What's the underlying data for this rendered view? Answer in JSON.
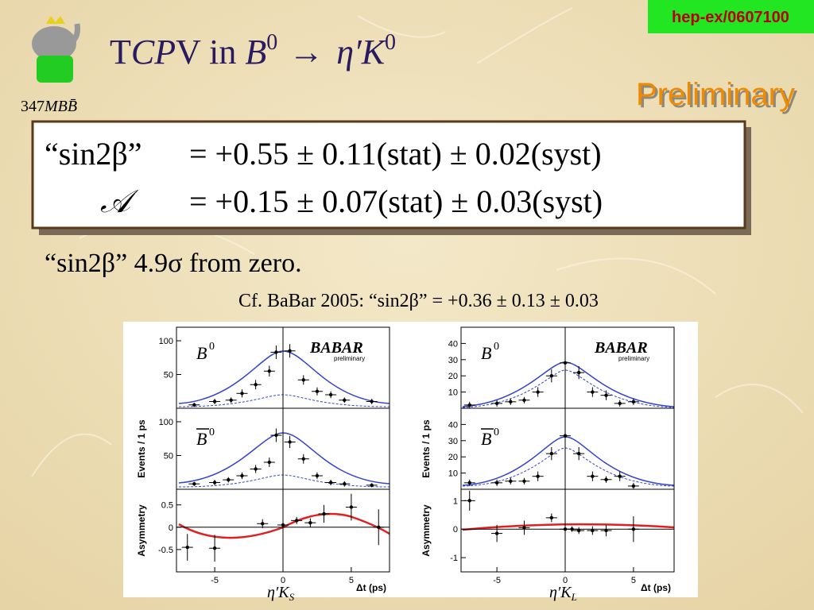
{
  "ref": "hep-ex/0607100",
  "title": {
    "t": "T",
    "cp": "CP",
    "v": "V in ",
    "b": "B",
    "sup": "0",
    "arrow": "→",
    "etak": "η′K",
    "sup2": "0"
  },
  "dataset": {
    "num": "347",
    "unit": "MBB̄"
  },
  "stamp": "Preliminary",
  "result": {
    "line1": {
      "name": "“sin2β”",
      "value": "= +0.55 ± 0.11(stat) ± 0.02(syst)"
    },
    "line2": {
      "name": "𝒜",
      "value": "= +0.15 ± 0.07(stat) ± 0.03(syst)"
    }
  },
  "significance": "“sin2β” 4.9σ from zero.",
  "comparison": "Cf. BaBar 2005: “sin2β” = +0.36 ± 0.13 ± 0.03",
  "plots": [
    {
      "mode": "η′K",
      "sub": "S"
    },
    {
      "mode": "η′K",
      "sub": "L"
    }
  ],
  "plot_text": {
    "b0": "B",
    "b0bar": "B",
    "sup": "0",
    "babar": "BABAR",
    "prelim": "preliminary",
    "ylabel": "Events / 1 ps",
    "asym": "Asymmetry",
    "xlabel": "Δt (ps)"
  },
  "chart_data": [
    {
      "type": "scatter",
      "x": [
        -6.5,
        -5,
        -3.8,
        -3,
        -2,
        -1,
        -0.5,
        0.5,
        1.5,
        2.5,
        3.5,
        4.5,
        6.5
      ],
      "values": [
        5,
        10,
        12,
        22,
        35,
        55,
        83,
        85,
        42,
        25,
        20,
        12,
        10
      ],
      "errors": [
        3,
        4,
        4,
        6,
        7,
        8,
        10,
        10,
        7,
        6,
        5,
        4,
        4
      ],
      "xlim": [
        -7.5,
        7.5
      ],
      "ylim": [
        0,
        120
      ],
      "yticks": [
        50,
        100
      ]
    },
    {
      "type": "scatter",
      "x": [
        -6.5,
        -5,
        -4,
        -3,
        -2,
        -1,
        -0.5,
        0.5,
        1.5,
        2.5,
        3.5,
        4.5,
        6.5
      ],
      "values": [
        8,
        10,
        14,
        20,
        30,
        40,
        80,
        70,
        45,
        20,
        10,
        8,
        6
      ],
      "errors": [
        3,
        4,
        4,
        5,
        6,
        7,
        10,
        9,
        7,
        5,
        4,
        4,
        3
      ],
      "xlim": [
        -7.5,
        7.5
      ],
      "ylim": [
        0,
        120
      ],
      "yticks": [
        50,
        100
      ]
    },
    {
      "type": "scatter",
      "x": [
        -7,
        -5,
        -1.5,
        0,
        1,
        2,
        3,
        5,
        7
      ],
      "values": [
        -0.45,
        -0.47,
        0.08,
        0.05,
        0.15,
        0.1,
        0.3,
        0.45,
        0
      ],
      "errors": [
        0.3,
        0.3,
        0.1,
        0.08,
        0.08,
        0.1,
        0.2,
        0.3,
        0.4
      ],
      "xlim": [
        -7.5,
        7.5
      ],
      "ylim": [
        -1,
        0.85
      ],
      "yticks": [
        0.5,
        0,
        -0.5
      ],
      "xticks": [
        -5,
        0,
        5
      ]
    },
    {
      "type": "scatter",
      "x": [
        -7,
        -5,
        -4,
        -3,
        -2,
        -1,
        0,
        1,
        2,
        3,
        4,
        5
      ],
      "values": [
        2,
        3,
        4,
        5,
        10,
        20,
        28,
        22,
        10,
        8,
        3,
        4
      ],
      "errors": [
        2,
        2,
        2,
        2,
        3,
        4,
        5,
        4,
        3,
        3,
        2,
        2
      ],
      "xlim": [
        -7.5,
        7.5
      ],
      "ylim": [
        0,
        50
      ],
      "yticks": [
        10,
        20,
        30,
        40
      ]
    },
    {
      "type": "scatter",
      "x": [
        -7,
        -5,
        -4,
        -3,
        -2,
        -1,
        0,
        1,
        2,
        3,
        4,
        5
      ],
      "values": [
        4,
        4,
        5,
        5,
        8,
        22,
        33,
        22,
        8,
        6,
        8,
        2
      ],
      "errors": [
        2,
        2,
        2,
        2,
        3,
        4,
        5,
        4,
        3,
        2,
        3,
        2
      ],
      "xlim": [
        -7.5,
        7.5
      ],
      "ylim": [
        0,
        50
      ],
      "yticks": [
        10,
        20,
        30,
        40
      ]
    },
    {
      "type": "scatter",
      "x": [
        -7,
        -5,
        -3,
        -1,
        0,
        0.5,
        1,
        2,
        3,
        5
      ],
      "values": [
        1.0,
        -0.15,
        0.05,
        0.4,
        0,
        0,
        -0.05,
        -0.05,
        -0.05,
        0
      ],
      "errors": [
        0.35,
        0.3,
        0.25,
        0.15,
        0.1,
        0.1,
        0.12,
        0.15,
        0.2,
        0.45
      ],
      "xlim": [
        -7.5,
        7.5
      ],
      "ylim": [
        -1.5,
        1.4
      ],
      "yticks": [
        1,
        0,
        -1
      ],
      "xticks": [
        -5,
        0,
        5
      ]
    }
  ]
}
